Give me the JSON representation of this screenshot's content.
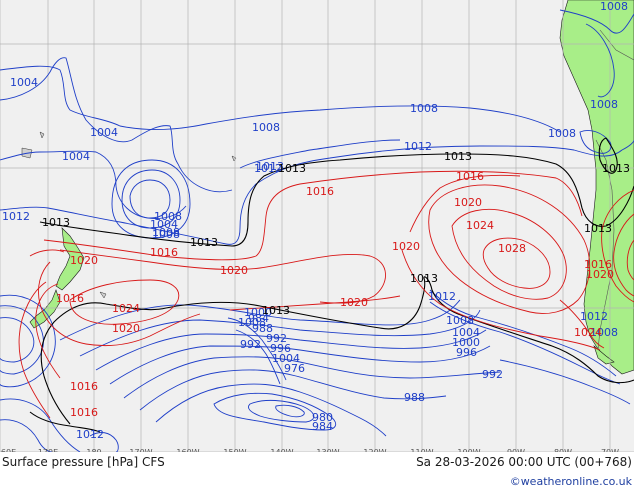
{
  "map": {
    "title": "Surface pressure [hPa] CFS",
    "valid_time": "Sa 28-03-2026 00:00 UTC (00+768)",
    "credit": "©weatheronline.co.uk",
    "lon_labels": [
      "160E",
      "170E",
      "180",
      "170W",
      "160W",
      "150W",
      "140W",
      "130W",
      "120W",
      "110W",
      "100W",
      "90W",
      "80W",
      "70W"
    ],
    "colors": {
      "low": "#1f3fc8",
      "high": "#d81818",
      "ref": "#000000",
      "land": "#a8ee88",
      "ocean": "#f0f0f0",
      "grid": "#b4b4b4"
    },
    "isobar_labels": {
      "blue": [
        "1004",
        "1004",
        "1004",
        "1008",
        "1008",
        "1008",
        "1008",
        "1008",
        "1008",
        "1012",
        "1012",
        "1012",
        "1008",
        "1004",
        "1000",
        "996",
        "992",
        "992",
        "988",
        "984",
        "980",
        "976",
        "984",
        "988",
        "992",
        "996",
        "1000",
        "1004",
        "1008",
        "1008",
        "1012",
        "1012",
        "1013",
        "1004",
        "1008",
        "1012",
        "1008"
      ],
      "black": [
        "1013",
        "1013",
        "1013",
        "1013",
        "1013",
        "1013",
        "1013",
        "1013"
      ],
      "red": [
        "1016",
        "1016",
        "1016",
        "1020",
        "1020",
        "1020",
        "1024",
        "1020",
        "1016",
        "1020",
        "1016",
        "1028",
        "1024",
        "1016",
        "1020",
        "1024",
        "1020",
        "1016"
      ]
    }
  }
}
